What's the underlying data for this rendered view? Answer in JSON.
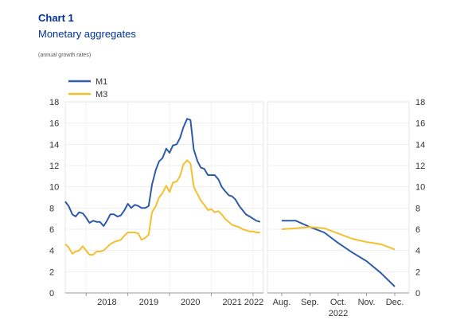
{
  "header": {
    "title": "Chart 1",
    "subtitle": "Monetary aggregates",
    "note": "(annual growth rates)"
  },
  "chart_data": [
    {
      "type": "line",
      "panel": "left",
      "x_tick_labels": [
        "2018",
        "2019",
        "2020",
        "2021",
        "2022"
      ],
      "y_ticks": [
        0,
        2,
        4,
        6,
        8,
        10,
        12,
        14,
        16,
        18
      ],
      "ylim": [
        0,
        18
      ],
      "xlim": [
        2017.5,
        2022.25
      ],
      "legend": "top-left",
      "grid": true,
      "series": [
        {
          "name": "M1",
          "color": "#2c5ba8",
          "x": [
            2017.5,
            2017.58,
            2017.67,
            2017.75,
            2017.83,
            2017.92,
            2018.0,
            2018.08,
            2018.17,
            2018.25,
            2018.33,
            2018.42,
            2018.5,
            2018.58,
            2018.67,
            2018.75,
            2018.83,
            2018.92,
            2019.0,
            2019.08,
            2019.17,
            2019.25,
            2019.33,
            2019.42,
            2019.5,
            2019.58,
            2019.67,
            2019.75,
            2019.83,
            2019.92,
            2020.0,
            2020.08,
            2020.17,
            2020.25,
            2020.33,
            2020.42,
            2020.5,
            2020.58,
            2020.67,
            2020.75,
            2020.83,
            2020.92,
            2021.0,
            2021.08,
            2021.17,
            2021.25,
            2021.33,
            2021.42,
            2021.5,
            2021.58,
            2021.67,
            2021.75,
            2021.83,
            2021.92,
            2022.0,
            2022.08,
            2022.17
          ],
          "values": [
            8.6,
            8.2,
            7.4,
            7.2,
            7.6,
            7.5,
            7.1,
            6.6,
            6.8,
            6.7,
            6.7,
            6.3,
            6.8,
            7.4,
            7.4,
            7.2,
            7.3,
            7.8,
            8.4,
            8.0,
            8.3,
            8.2,
            8.0,
            8.0,
            8.2,
            10.2,
            11.6,
            12.4,
            12.7,
            13.6,
            13.2,
            13.9,
            14.0,
            14.6,
            15.6,
            16.4,
            16.3,
            13.5,
            12.4,
            11.8,
            11.7,
            11.1,
            11.1,
            11.1,
            10.7,
            10.0,
            9.6,
            9.2,
            9.1,
            8.8,
            8.2,
            7.8,
            7.4,
            7.2,
            7.0,
            6.8,
            6.7
          ]
        },
        {
          "name": "M3",
          "color": "#f5c02f",
          "x": [
            2017.5,
            2017.58,
            2017.67,
            2017.75,
            2017.83,
            2017.92,
            2018.0,
            2018.08,
            2018.17,
            2018.25,
            2018.33,
            2018.42,
            2018.5,
            2018.58,
            2018.67,
            2018.75,
            2018.83,
            2018.92,
            2019.0,
            2019.08,
            2019.17,
            2019.25,
            2019.33,
            2019.42,
            2019.5,
            2019.58,
            2019.67,
            2019.75,
            2019.83,
            2019.92,
            2020.0,
            2020.08,
            2020.17,
            2020.25,
            2020.33,
            2020.42,
            2020.5,
            2020.58,
            2020.67,
            2020.75,
            2020.83,
            2020.92,
            2021.0,
            2021.08,
            2021.17,
            2021.25,
            2021.33,
            2021.42,
            2021.5,
            2021.58,
            2021.67,
            2021.75,
            2021.83,
            2021.92,
            2022.0,
            2022.08,
            2022.17
          ],
          "values": [
            4.6,
            4.3,
            3.7,
            3.9,
            4.0,
            4.4,
            4.0,
            3.6,
            3.6,
            3.9,
            3.9,
            4.0,
            4.3,
            4.6,
            4.8,
            4.9,
            5.0,
            5.4,
            5.7,
            5.7,
            5.7,
            5.6,
            5.0,
            5.2,
            5.5,
            7.6,
            8.2,
            9.0,
            9.4,
            10.1,
            9.5,
            10.4,
            10.5,
            11.0,
            12.1,
            12.5,
            12.2,
            10.0,
            9.3,
            8.7,
            8.3,
            7.8,
            7.9,
            7.6,
            7.7,
            7.4,
            7.0,
            6.7,
            6.4,
            6.3,
            6.2,
            6.0,
            5.9,
            5.8,
            5.8,
            5.7,
            5.7
          ]
        }
      ]
    },
    {
      "type": "line",
      "panel": "right",
      "categories": [
        "Aug.",
        "Sep.",
        "Oct.",
        "Nov.",
        "Dec."
      ],
      "x_caption": "2022",
      "y_ticks": [
        0,
        2,
        4,
        6,
        8,
        10,
        12,
        14,
        16,
        18
      ],
      "ylim": [
        0,
        18
      ],
      "grid": true,
      "series": [
        {
          "name": "M1",
          "color": "#2c5ba8",
          "x": [
            0,
            0.5,
            1,
            1.5,
            2,
            2.5,
            3,
            3.5,
            4
          ],
          "values": [
            6.8,
            6.8,
            6.2,
            5.7,
            4.7,
            3.8,
            3.0,
            1.9,
            0.6
          ]
        },
        {
          "name": "M3",
          "color": "#f5c02f",
          "x": [
            0,
            0.5,
            1,
            1.5,
            2,
            2.5,
            3,
            3.5,
            4
          ],
          "values": [
            6.0,
            6.1,
            6.2,
            6.1,
            5.6,
            5.1,
            4.8,
            4.6,
            4.1
          ]
        }
      ]
    }
  ]
}
